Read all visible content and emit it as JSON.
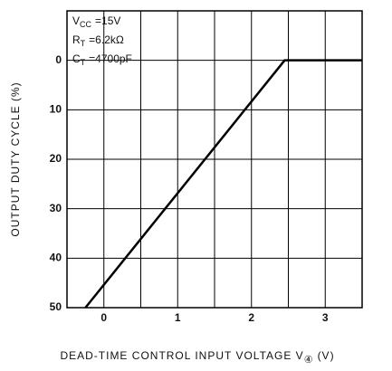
{
  "chart_data": {
    "type": "line",
    "y_label": "OUTPUT DUTY CYCLE (%)",
    "x_label": {
      "base": "DEAD-TIME CONTROL INPUT VOLTAGE V",
      "sub": "④",
      "rest": "(V)"
    },
    "annotations": [
      {
        "base": "V",
        "sub": "CC",
        "rest": "=15V"
      },
      {
        "base": "R",
        "sub": "T",
        "rest": "=6.2kΩ"
      },
      {
        "base": "C",
        "sub": "T",
        "rest": "=4700pF"
      }
    ],
    "x": [
      -0.25,
      2.45,
      3.5
    ],
    "values": [
      50,
      0,
      0
    ],
    "color": "#000000",
    "xlim": [
      -0.5,
      3.5
    ],
    "xticks": [
      0,
      1,
      2,
      3
    ],
    "x_minor_grid": [
      0.5,
      1.5,
      2.5
    ],
    "ylim": [
      -10,
      50
    ],
    "y_inverted": true,
    "yticks": [
      0,
      10,
      20,
      30,
      40,
      50
    ],
    "grid": true
  }
}
